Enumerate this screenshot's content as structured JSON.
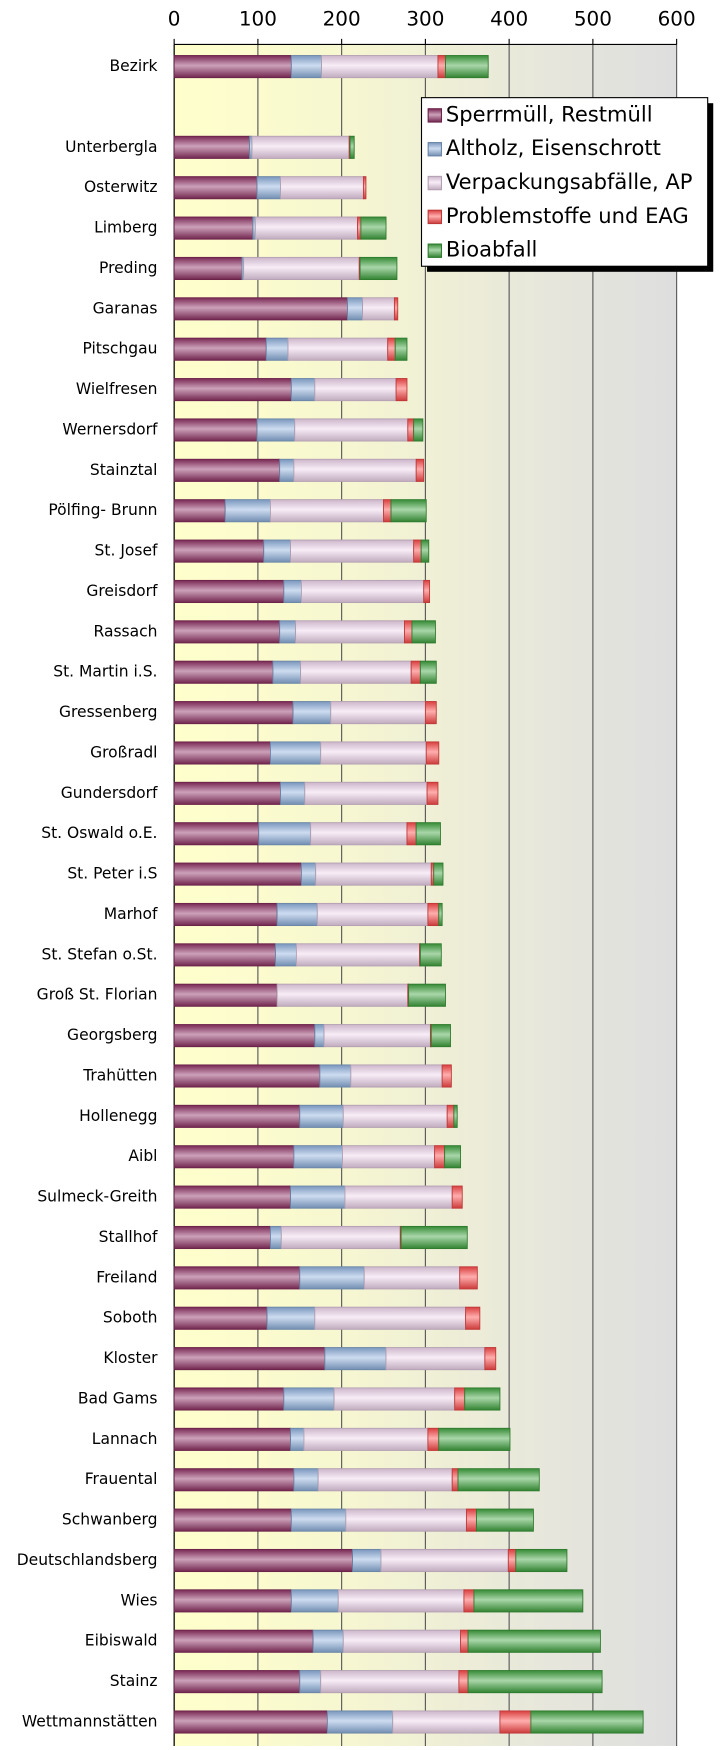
{
  "chart_data": {
    "type": "stacked-barh",
    "categories": [
      "Bezirk",
      null,
      "Unterbergla",
      "Osterwitz",
      "Limberg",
      "Preding",
      "Garanas",
      "Pitschgau",
      "Wielfresen",
      "Wernersdorf",
      "Stainztal",
      "Pölfing- Brunn",
      "St. Josef",
      "Greisdorf",
      "Rassach",
      "St. Martin i.S.",
      "Gressenberg",
      "Großradl",
      "Gundersdorf",
      "St. Oswald o.E.",
      "St. Peter i.S",
      "Marhof",
      "St. Stefan o.St.",
      "Groß St. Florian",
      "Georgsberg",
      "Trahütten",
      "Hollenegg",
      "Aibl",
      "Sulmeck-Greith",
      "Stallhof",
      "Freiland",
      "Soboth",
      "Kloster",
      "Bad Gams",
      "Lannach",
      "Frauental",
      "Schwanberg",
      "Deutschlandsberg",
      "Wies",
      "Eibiswald",
      "Stainz",
      "Wettmannstätten"
    ],
    "series": [
      {
        "name": "Sperrmüll, Restmüll",
        "color": "#8e2f63",
        "values": [
          140,
          null,
          90,
          99,
          94,
          81,
          207,
          110,
          140,
          99,
          126,
          61,
          107,
          131,
          126,
          118,
          142,
          115,
          127,
          101,
          152,
          123,
          121,
          123,
          168,
          174,
          150,
          143,
          139,
          115,
          150,
          111,
          180,
          131,
          139,
          143,
          140,
          213,
          140,
          166,
          150,
          183
        ]
      },
      {
        "name": "Altholz, Eisenschrott",
        "color": "#8fb2de",
        "values": [
          36,
          null,
          3,
          28,
          3,
          2,
          18,
          26,
          28,
          45,
          17,
          54,
          32,
          21,
          19,
          33,
          45,
          60,
          29,
          62,
          17,
          48,
          25,
          0,
          11,
          37,
          52,
          58,
          65,
          13,
          77,
          57,
          73,
          60,
          16,
          29,
          65,
          34,
          56,
          36,
          25,
          78
        ]
      },
      {
        "name": "Verpackungsabfälle, AP",
        "color": "#f0d6ee",
        "values": [
          139,
          null,
          116,
          99,
          122,
          138,
          38,
          119,
          97,
          135,
          146,
          135,
          147,
          146,
          130,
          132,
          113,
          126,
          146,
          115,
          138,
          132,
          147,
          156,
          127,
          109,
          124,
          110,
          128,
          142,
          114,
          180,
          118,
          144,
          148,
          160,
          144,
          152,
          150,
          140,
          165,
          128
        ]
      },
      {
        "name": "Problemstoffe und EAG",
        "color": "#ff4a4a",
        "values": [
          9,
          null,
          1,
          3,
          4,
          1,
          4,
          9,
          13,
          7,
          9,
          9,
          9,
          7,
          9,
          11,
          13,
          15,
          13,
          11,
          3,
          13,
          1,
          1,
          1,
          11,
          8,
          12,
          12,
          1,
          21,
          17,
          13,
          12,
          13,
          7,
          12,
          9,
          12,
          9,
          11,
          37
        ]
      },
      {
        "name": "Bioabfall",
        "color": "#3fa43f",
        "values": [
          51,
          null,
          5,
          0,
          30,
          44,
          0,
          14,
          0,
          11,
          0,
          42,
          9,
          0,
          28,
          19,
          0,
          0,
          0,
          29,
          11,
          4,
          25,
          44,
          23,
          0,
          4,
          19,
          0,
          79,
          0,
          0,
          0,
          42,
          85,
          97,
          68,
          61,
          130,
          158,
          160,
          134
        ]
      }
    ],
    "xlim": [
      0,
      600
    ],
    "xticks": [
      0,
      100,
      200,
      300,
      400,
      500,
      600
    ],
    "grid": true,
    "legend": "upper right"
  }
}
